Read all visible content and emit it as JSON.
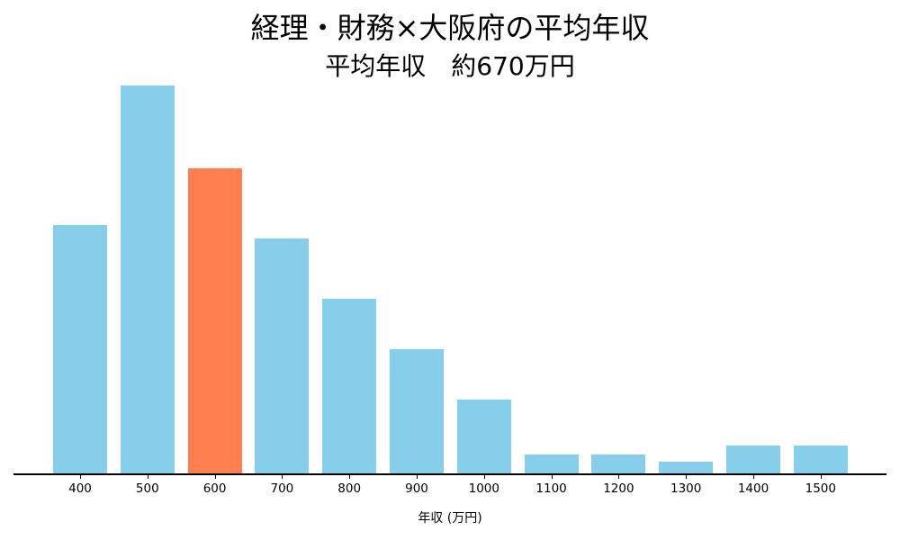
{
  "chart_data": {
    "type": "bar",
    "title": "経理・財務×大阪府の平均年収",
    "subtitle": "平均年収　約670万円",
    "xlabel": "年収 (万円)",
    "ylabel": "",
    "categories": [
      "400",
      "500",
      "600",
      "700",
      "800",
      "900",
      "1000",
      "1100",
      "1200",
      "1300",
      "1400",
      "1500"
    ],
    "values": [
      277,
      432,
      340,
      262,
      195,
      139,
      83,
      22,
      22,
      14,
      32,
      32
    ],
    "value_note": "relative bar heights in pixels; no y-axis shown",
    "highlight_category": "600",
    "colors": {
      "default": "#87CEEB",
      "highlight": "#FF7F50"
    },
    "grid": false,
    "legend": null
  }
}
